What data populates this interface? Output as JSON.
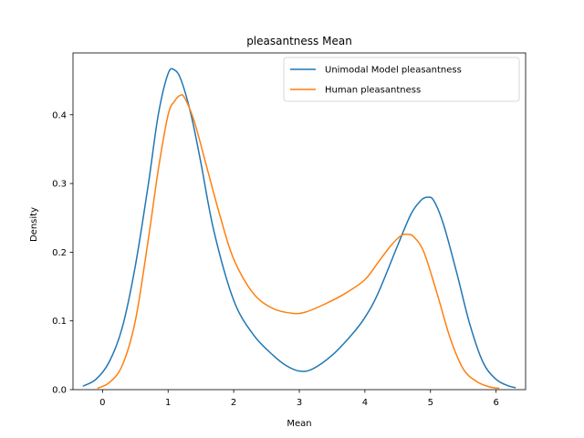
{
  "chart_data": {
    "type": "line",
    "title": "pleasantness Mean",
    "xlabel": "Mean",
    "ylabel": "Density",
    "xlim": [
      -0.45,
      6.45
    ],
    "ylim": [
      0,
      0.49
    ],
    "xticks": [
      0,
      1,
      2,
      3,
      4,
      5,
      6
    ],
    "yticks": [
      0.0,
      0.1,
      0.2,
      0.3,
      0.4
    ],
    "ytick_labels": [
      "0.0",
      "0.1",
      "0.2",
      "0.3",
      "0.4"
    ],
    "grid": false,
    "legend_position": "top-right",
    "series": [
      {
        "name": "Unimodal Model pleasantness",
        "color": "#1f77b4",
        "x": [
          -0.3,
          -0.1,
          0.1,
          0.3,
          0.5,
          0.7,
          0.85,
          1.0,
          1.1,
          1.2,
          1.35,
          1.5,
          1.7,
          2.0,
          2.3,
          2.6,
          2.8,
          3.0,
          3.2,
          3.5,
          3.8,
          4.0,
          4.2,
          4.5,
          4.7,
          4.85,
          4.95,
          5.05,
          5.2,
          5.4,
          5.6,
          5.8,
          6.0,
          6.2,
          6.3
        ],
        "y": [
          0.005,
          0.015,
          0.04,
          0.09,
          0.18,
          0.3,
          0.4,
          0.46,
          0.465,
          0.45,
          0.4,
          0.33,
          0.23,
          0.13,
          0.08,
          0.05,
          0.035,
          0.027,
          0.03,
          0.05,
          0.08,
          0.105,
          0.14,
          0.21,
          0.255,
          0.275,
          0.28,
          0.275,
          0.24,
          0.17,
          0.095,
          0.04,
          0.015,
          0.005,
          0.003
        ]
      },
      {
        "name": "Human pleasantness",
        "color": "#ff7f0e",
        "x": [
          -0.08,
          0.1,
          0.3,
          0.5,
          0.7,
          0.85,
          1.0,
          1.1,
          1.18,
          1.25,
          1.4,
          1.6,
          1.8,
          2.0,
          2.3,
          2.6,
          2.9,
          3.1,
          3.4,
          3.7,
          4.0,
          4.2,
          4.4,
          4.55,
          4.65,
          4.75,
          4.9,
          5.1,
          5.3,
          5.5,
          5.7,
          5.9,
          6.05
        ],
        "y": [
          0.002,
          0.01,
          0.035,
          0.1,
          0.22,
          0.32,
          0.4,
          0.42,
          0.428,
          0.425,
          0.39,
          0.32,
          0.25,
          0.19,
          0.14,
          0.118,
          0.111,
          0.113,
          0.125,
          0.14,
          0.16,
          0.185,
          0.21,
          0.224,
          0.226,
          0.222,
          0.2,
          0.14,
          0.075,
          0.03,
          0.012,
          0.004,
          0.002
        ]
      }
    ]
  }
}
